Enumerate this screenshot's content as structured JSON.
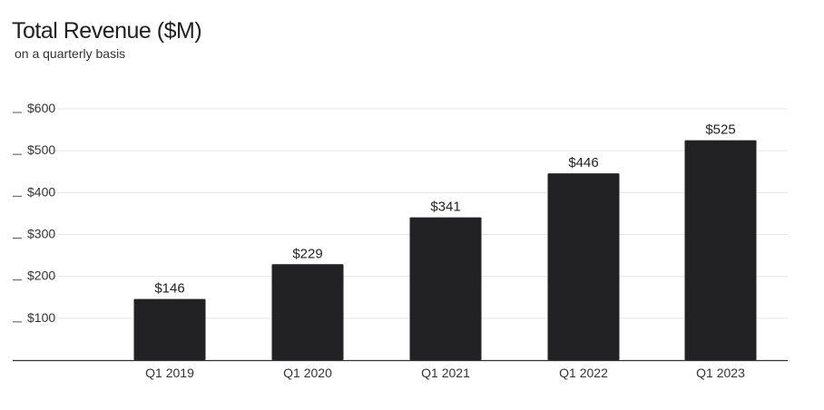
{
  "chart_data": {
    "type": "bar",
    "title": "Total Revenue ($M)",
    "subtitle": "on a quarterly basis",
    "categories": [
      "Q1 2019",
      "Q1 2020",
      "Q1 2021",
      "Q1 2022",
      "Q1 2023"
    ],
    "values": [
      146,
      229,
      341,
      446,
      525
    ],
    "data_labels": [
      "$146",
      "$229",
      "$341",
      "$446",
      "$525"
    ],
    "y_ticks": [
      100,
      200,
      300,
      400,
      500,
      600
    ],
    "y_tick_labels": [
      "$100",
      "$200",
      "$300",
      "$400",
      "$500",
      "$600"
    ],
    "ylim": [
      0,
      600
    ],
    "grid": true,
    "legend": "none",
    "xlabel": "",
    "ylabel": "",
    "bar_color": "#222225",
    "grid_color": "#e6e6e6",
    "axis_color": "#555555"
  }
}
